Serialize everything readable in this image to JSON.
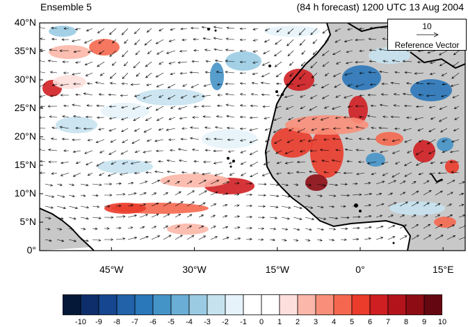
{
  "header": {
    "left_title": "Ensemble 5",
    "right_title": "(84 h forecast) 1200 UTC 13 Aug 2004"
  },
  "map": {
    "lat_labels": [
      "40°N",
      "35°N",
      "30°N",
      "25°N",
      "20°N",
      "15°N",
      "10°N",
      "5°N",
      "0°"
    ],
    "lon_labels": [
      "45°W",
      "30°W",
      "15°W",
      "0°",
      "15°E"
    ],
    "lat_range": [
      0,
      40
    ],
    "lon_range": [
      -58,
      19
    ],
    "land_color": "#c8c8c8",
    "ocean_color": "#ffffff"
  },
  "reference_vector": {
    "magnitude": "10",
    "label": "Reference Vector"
  },
  "colorbar": {
    "tick_labels": [
      "-10",
      "-9",
      "-8",
      "-7",
      "-6",
      "-5",
      "-4",
      "-3",
      "-2",
      "-1",
      "0",
      "1",
      "2",
      "3",
      "4",
      "5",
      "6",
      "7",
      "8",
      "9",
      "10"
    ],
    "colors": [
      "#051838",
      "#0d2e6a",
      "#16468f",
      "#2162a9",
      "#2a77b9",
      "#4594c8",
      "#6aaed6",
      "#9acbe3",
      "#c6e2ef",
      "#e6f3fa",
      "#ffffff",
      "#ffffff",
      "#fde0dd",
      "#fbb7a9",
      "#f98f7a",
      "#f5684f",
      "#ea3b2b",
      "#d01f22",
      "#b3141c",
      "#8e0d15",
      "#650710"
    ]
  }
}
